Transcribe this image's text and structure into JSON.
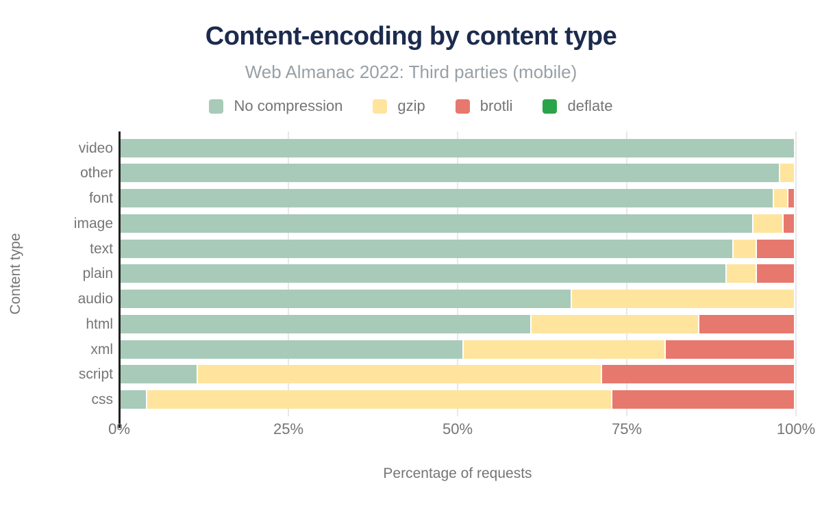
{
  "chart_data": {
    "type": "bar",
    "orientation": "horizontal",
    "stacked": true,
    "title": "Content-encoding by content type",
    "subtitle": "Web Almanac 2022: Third parties (mobile)",
    "xlabel": "Percentage of requests",
    "ylabel": "Content type",
    "xlim": [
      0,
      100
    ],
    "x_ticks": [
      "0%",
      "25%",
      "50%",
      "75%",
      "100%"
    ],
    "x_tick_values": [
      0,
      25,
      50,
      75,
      100
    ],
    "legend_position": "top",
    "grid": "vertical",
    "categories": [
      "video",
      "other",
      "font",
      "image",
      "text",
      "plain",
      "audio",
      "html",
      "xml",
      "script",
      "css"
    ],
    "series": [
      {
        "name": "No compression",
        "color": "#a8cab9",
        "values": [
          100,
          98,
          97,
          94,
          91,
          90,
          67,
          61,
          51,
          11.5,
          4
        ]
      },
      {
        "name": "gzip",
        "color": "#ffe49e",
        "values": [
          0,
          2,
          2.2,
          4.5,
          3.5,
          4.5,
          33,
          25,
          30,
          60,
          69
        ]
      },
      {
        "name": "brotli",
        "color": "#e7786d",
        "values": [
          0,
          0,
          0.8,
          1.5,
          5.5,
          5.5,
          0,
          14,
          19,
          28.5,
          27
        ]
      },
      {
        "name": "deflate",
        "color": "#2aa44a",
        "values": [
          0,
          0,
          0,
          0,
          0,
          0,
          0,
          0,
          0,
          0,
          0
        ]
      }
    ]
  },
  "colors": {
    "title": "#1c2b4d",
    "subtitle": "#98a0a6",
    "axis_text": "#757575",
    "gridline": "#e8e8e8",
    "axis_line": "#212121",
    "background": "#ffffff"
  }
}
